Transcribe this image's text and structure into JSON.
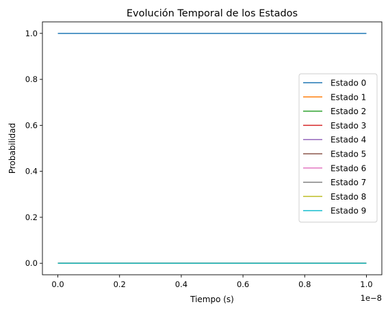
{
  "chart_data": {
    "type": "line",
    "title": "Evolución Temporal de los Estados",
    "xlabel": "Tiempo (s)",
    "ylabel": "Probabilidad",
    "x_offset_label": "1e−8",
    "xlim": [
      -0.05,
      1.05
    ],
    "ylim": [
      -0.05,
      1.05
    ],
    "x_ticks": [
      0.0,
      0.2,
      0.4,
      0.6,
      0.8,
      1.0
    ],
    "x_tick_labels": [
      "0.0",
      "0.2",
      "0.4",
      "0.6",
      "0.8",
      "1.0"
    ],
    "y_ticks": [
      0.0,
      0.2,
      0.4,
      0.6,
      0.8,
      1.0
    ],
    "y_tick_labels": [
      "0.0",
      "0.2",
      "0.4",
      "0.6",
      "0.8",
      "1.0"
    ],
    "grid": false,
    "legend_position": "center-right",
    "x": [
      0.0,
      1.0
    ],
    "series": [
      {
        "name": "Estado 0",
        "color": "#1f77b4",
        "values": [
          1.0,
          1.0
        ]
      },
      {
        "name": "Estado 1",
        "color": "#ff7f0e",
        "values": [
          0.0,
          0.0
        ]
      },
      {
        "name": "Estado 2",
        "color": "#2ca02c",
        "values": [
          0.0,
          0.0
        ]
      },
      {
        "name": "Estado 3",
        "color": "#d62728",
        "values": [
          0.0,
          0.0
        ]
      },
      {
        "name": "Estado 4",
        "color": "#9467bd",
        "values": [
          0.0,
          0.0
        ]
      },
      {
        "name": "Estado 5",
        "color": "#8c564b",
        "values": [
          0.0,
          0.0
        ]
      },
      {
        "name": "Estado 6",
        "color": "#e377c2",
        "values": [
          0.0,
          0.0
        ]
      },
      {
        "name": "Estado 7",
        "color": "#7f7f7f",
        "values": [
          0.0,
          0.0
        ]
      },
      {
        "name": "Estado 8",
        "color": "#bcbd22",
        "values": [
          0.0,
          0.0
        ]
      },
      {
        "name": "Estado 9",
        "color": "#17becf",
        "values": [
          0.0,
          0.0
        ]
      }
    ]
  }
}
